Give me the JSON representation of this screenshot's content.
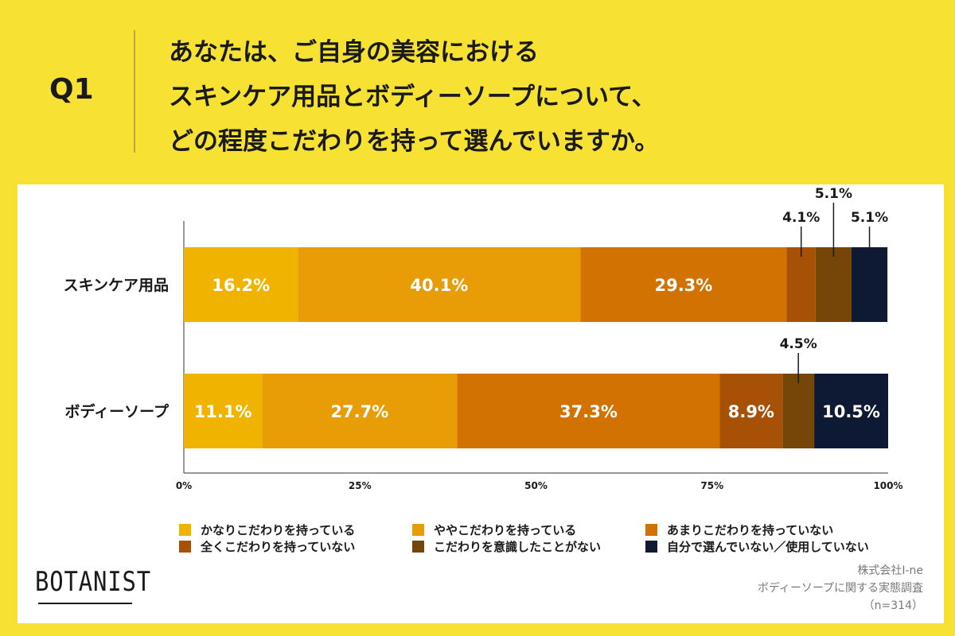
{
  "header": {
    "q_label": "Q1",
    "title_lines": [
      "あなたは、ご自身の美容における",
      "スキンケア用品とボディーソープについて、",
      "どの程度こだわりを持って選んでいますか。"
    ]
  },
  "chart_data": {
    "type": "bar",
    "orientation": "horizontal-stacked-100",
    "categories": [
      "スキンケア用品",
      "ボディーソープ"
    ],
    "series": [
      {
        "name": "かなりこだわりを持っている",
        "color": "#f0b400",
        "values": [
          16.2,
          11.1
        ]
      },
      {
        "name": "ややこだわりを持っている",
        "color": "#e89c06",
        "values": [
          40.1,
          27.7
        ]
      },
      {
        "name": "あまりこだわりを持っていない",
        "color": "#d17203",
        "values": [
          29.3,
          37.3
        ]
      },
      {
        "name": "全くこだわりを持っていない",
        "color": "#a75106",
        "values": [
          4.1,
          8.9
        ]
      },
      {
        "name": "こだわりを意識したことがない",
        "color": "#764608",
        "values": [
          5.1,
          4.5
        ]
      },
      {
        "name": "自分で選んでいない／使用していない",
        "color": "#0e1a33",
        "values": [
          5.1,
          10.5
        ]
      }
    ],
    "value_labels": [
      [
        "16.2%",
        "40.1%",
        "29.3%",
        "4.1%",
        "5.1%",
        "5.1%"
      ],
      [
        "11.1%",
        "27.7%",
        "37.3%",
        "8.9%",
        "4.5%",
        "10.5%"
      ]
    ],
    "callouts": [
      [
        false,
        false,
        false,
        true,
        true,
        true
      ],
      [
        false,
        false,
        false,
        false,
        true,
        false
      ]
    ],
    "x_ticks": [
      "0%",
      "25%",
      "50%",
      "75%",
      "100%"
    ],
    "xlim": [
      0,
      100
    ],
    "legend_position": "bottom"
  },
  "footer": {
    "logo": "BOTANIST",
    "source_lines": [
      "株式会社I-ne",
      "ボディーソープに関する実態調査",
      "（n=314）"
    ]
  }
}
